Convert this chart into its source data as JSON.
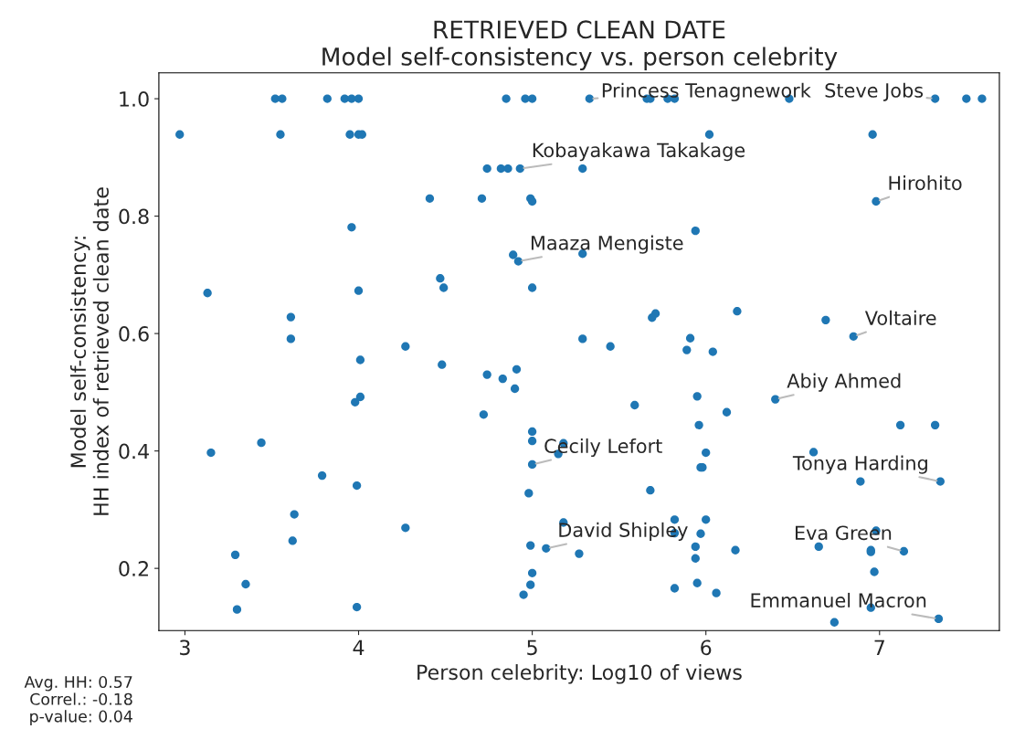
{
  "chart_data": {
    "type": "scatter",
    "title": "RETRIEVED CLEAN DATE",
    "subtitle": "Model self-consistency vs. person celebrity",
    "xlabel": "Person celebrity: Log10 of views",
    "ylabel": "Model self-consistency:\nHH index of retrieved clean date",
    "xlim": [
      2.85,
      7.69
    ],
    "ylim": [
      0.094,
      1.044
    ],
    "xticks": [
      3,
      4,
      5,
      6,
      7
    ],
    "yticks": [
      0.2,
      0.4,
      0.6,
      0.8,
      {
        "value": 1,
        "label": "1.0"
      }
    ],
    "grid": false,
    "marker": "circle",
    "series": [
      {
        "color": "#1f77b4",
        "x": [
          3.52,
          3.56,
          3.82,
          3.92,
          3.96,
          4.0,
          4.85,
          4.96,
          5.0,
          5.33,
          5.66,
          5.68,
          5.78,
          5.82,
          6.48,
          7.32,
          7.5,
          7.59,
          2.97,
          3.55,
          3.95,
          4.0,
          4.02,
          6.02,
          6.96,
          4.74,
          4.82,
          4.86,
          4.93,
          5.29,
          4.41,
          4.71,
          4.99,
          5.0,
          6.98,
          3.96,
          5.94,
          4.89,
          4.92,
          5.29,
          4.47,
          4.49,
          5.0,
          4.0,
          3.13,
          3.61,
          3.61,
          5.29,
          5.45,
          5.91,
          5.89,
          6.04,
          6.18,
          6.69,
          6.85,
          5.71,
          5.69,
          4.01,
          4.27,
          4.48,
          4.74,
          4.83,
          4.91,
          4.9,
          4.01,
          3.98,
          4.72,
          5.0,
          5.0,
          5.18,
          5.15,
          5.0,
          3.15,
          3.44,
          3.79,
          3.99,
          4.98,
          3.63,
          4.27,
          3.62,
          5.18,
          4.99,
          5.08,
          5.27,
          3.29,
          5.0,
          3.35,
          4.99,
          4.95,
          3.3,
          3.99,
          6.4,
          5.95,
          5.59,
          6.12,
          5.96,
          7.12,
          7.32,
          6.0,
          6.62,
          5.97,
          5.98,
          5.68,
          6.89,
          7.35,
          5.82,
          6.0,
          5.97,
          5.82,
          5.94,
          5.94,
          6.17,
          6.65,
          6.98,
          6.95,
          6.95,
          7.14,
          6.97,
          5.82,
          5.95,
          6.06,
          6.74,
          6.95,
          7.34
        ],
        "values": [
          1.0,
          1.0,
          1.0,
          1.0,
          1.0,
          1.0,
          1.0,
          1.0,
          1.0,
          1.0,
          1.0,
          1.0,
          1.0,
          1.0,
          1.0,
          1.0,
          1.0,
          1.0,
          0.939,
          0.939,
          0.939,
          0.939,
          0.939,
          0.939,
          0.939,
          0.881,
          0.881,
          0.881,
          0.881,
          0.881,
          0.83,
          0.83,
          0.83,
          0.825,
          0.825,
          0.781,
          0.775,
          0.734,
          0.723,
          0.736,
          0.694,
          0.678,
          0.678,
          0.673,
          0.669,
          0.628,
          0.591,
          0.591,
          0.578,
          0.592,
          0.572,
          0.569,
          0.638,
          0.623,
          0.595,
          0.634,
          0.627,
          0.555,
          0.578,
          0.547,
          0.53,
          0.523,
          0.539,
          0.506,
          0.492,
          0.483,
          0.462,
          0.433,
          0.417,
          0.413,
          0.395,
          0.377,
          0.397,
          0.414,
          0.358,
          0.341,
          0.328,
          0.292,
          0.269,
          0.247,
          0.278,
          0.239,
          0.234,
          0.225,
          0.223,
          0.192,
          0.173,
          0.172,
          0.155,
          0.13,
          0.134,
          0.488,
          0.493,
          0.478,
          0.466,
          0.444,
          0.444,
          0.444,
          0.397,
          0.398,
          0.372,
          0.372,
          0.333,
          0.348,
          0.348,
          0.283,
          0.283,
          0.259,
          0.26,
          0.237,
          0.217,
          0.231,
          0.237,
          0.264,
          0.231,
          0.228,
          0.229,
          0.194,
          0.166,
          0.175,
          0.158,
          0.108,
          0.133,
          0.114
        ]
      }
    ],
    "annotations": [
      {
        "text": "Princess Tenagnework",
        "x": 5.33,
        "y": 1.0
      },
      {
        "text": "Steve Jobs",
        "x": 7.32,
        "y": 1.0
      },
      {
        "text": "Kobayakawa Takakage",
        "x": 4.93,
        "y": 0.881
      },
      {
        "text": "Hirohito",
        "x": 6.98,
        "y": 0.825
      },
      {
        "text": "Maaza Mengiste",
        "x": 4.92,
        "y": 0.723
      },
      {
        "text": "Voltaire",
        "x": 6.85,
        "y": 0.595
      },
      {
        "text": "Abiy Ahmed",
        "x": 6.4,
        "y": 0.488
      },
      {
        "text": "Cecily Lefort",
        "x": 5.0,
        "y": 0.377
      },
      {
        "text": "Tonya Harding",
        "x": 7.35,
        "y": 0.348
      },
      {
        "text": "David Shipley",
        "x": 5.08,
        "y": 0.234
      },
      {
        "text": "Eva Green",
        "x": 7.14,
        "y": 0.229
      },
      {
        "text": "Emmanuel Macron",
        "x": 7.34,
        "y": 0.114
      },
      "Avg. HH: 0.57",
      "Correl.: -0.18",
      "p-value: 0.04"
    ]
  }
}
